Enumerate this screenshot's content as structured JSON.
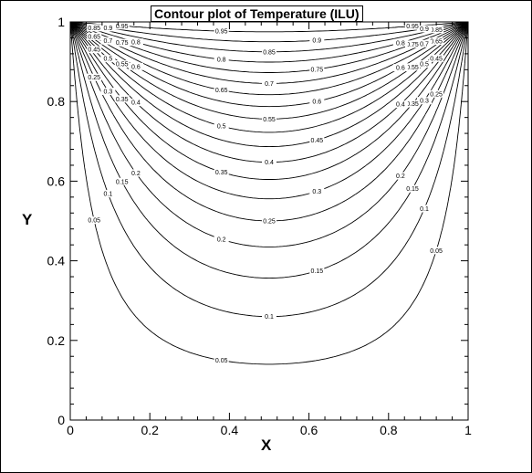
{
  "chart_data": {
    "type": "contour",
    "title": "Contour plot of Temperature (ILU)",
    "xlabel": "X",
    "ylabel": "Y",
    "xlim": [
      0,
      1
    ],
    "ylim": [
      0,
      1
    ],
    "grid": false,
    "legend": "none",
    "x_ticks": [
      0,
      0.2,
      0.4,
      0.6,
      0.8,
      1
    ],
    "y_ticks": [
      0,
      0.2,
      0.4,
      0.6,
      0.8,
      1
    ],
    "x_tick_labels": [
      "0",
      "0.2",
      "0.4",
      "0.6",
      "0.8",
      "1"
    ],
    "y_tick_labels": [
      "0",
      "0.2",
      "0.4",
      "0.6",
      "0.8",
      "1"
    ],
    "levels": [
      0.05,
      0.1,
      0.15,
      0.2,
      0.25,
      0.3,
      0.35,
      0.4,
      0.45,
      0.5,
      0.55,
      0.6,
      0.65,
      0.7,
      0.75,
      0.8,
      0.85,
      0.9,
      0.95
    ],
    "level_labels": [
      "0.05",
      "0.1",
      "0.15",
      "0.2",
      "0.25",
      "0.3",
      "0.35",
      "0.4",
      "0.45",
      "0.5",
      "0.55",
      "0.6",
      "0.65",
      "0.7",
      "0.75",
      "0.8",
      "0.85",
      "0.9",
      "0.95"
    ],
    "field": "temperature on unit square, T = 1 on top edge (y = 1), T = 0 on other edges",
    "line_color": "#000000"
  }
}
